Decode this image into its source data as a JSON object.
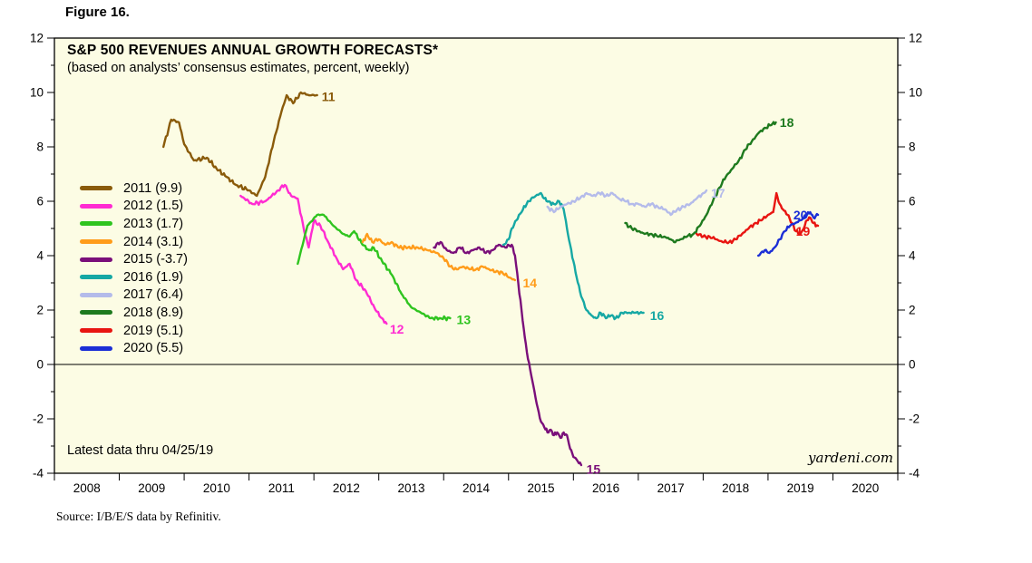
{
  "figure_label": "Figure 16.",
  "source_note": "Source: I/B/E/S data by Refinitiv.",
  "chart": {
    "title": "S&P 500 REVENUES ANNUAL GROWTH FORECASTS*",
    "subtitle": "(based on analysts’ consensus estimates, percent, weekly)",
    "latest_note": "Latest data thru 04/25/19",
    "watermark": "yardeni.com",
    "plot_background": "#fcfce4"
  },
  "chart_data": {
    "type": "line",
    "title": "S&P 500 REVENUES ANNUAL GROWTH FORECASTS*",
    "subtitle": "(based on analysts’ consensus estimates, percent, weekly)",
    "x_range": [
      2007.5,
      2020.5
    ],
    "y_range": [
      -4,
      12
    ],
    "x_ticks": [
      2008,
      2009,
      2010,
      2011,
      2012,
      2013,
      2014,
      2015,
      2016,
      2017,
      2018,
      2019,
      2020
    ],
    "y_ticks": [
      -4,
      -2,
      0,
      2,
      4,
      6,
      8,
      10,
      12
    ],
    "grid": false,
    "legend_position": "inside-left",
    "ylabel": "percent",
    "series": [
      {
        "name": "2011",
        "legend_label": "2011 (9.9)",
        "final_value": 9.9,
        "color": "#8a5b0a",
        "end_label": "11",
        "end_label_pos": [
          2011.62,
          9.85
        ],
        "points": [
          [
            2009.18,
            8.0
          ],
          [
            2009.3,
            9.0
          ],
          [
            2009.42,
            8.9
          ],
          [
            2009.5,
            8.1
          ],
          [
            2009.65,
            7.5
          ],
          [
            2009.85,
            7.6
          ],
          [
            2010.0,
            7.2
          ],
          [
            2010.15,
            6.9
          ],
          [
            2010.3,
            6.6
          ],
          [
            2010.5,
            6.4
          ],
          [
            2010.62,
            6.2
          ],
          [
            2010.75,
            6.9
          ],
          [
            2010.88,
            8.2
          ],
          [
            2011.0,
            9.3
          ],
          [
            2011.08,
            9.9
          ],
          [
            2011.18,
            9.6
          ],
          [
            2011.3,
            10.0
          ],
          [
            2011.42,
            9.9
          ],
          [
            2011.55,
            9.9
          ]
        ]
      },
      {
        "name": "2012",
        "legend_label": "2012 (1.5)",
        "final_value": 1.5,
        "color": "#ff2bd2",
        "end_label": "12",
        "end_label_pos": [
          2012.67,
          1.3
        ],
        "points": [
          [
            2010.37,
            6.2
          ],
          [
            2010.55,
            5.9
          ],
          [
            2010.75,
            6.0
          ],
          [
            2010.95,
            6.4
          ],
          [
            2011.05,
            6.6
          ],
          [
            2011.15,
            6.2
          ],
          [
            2011.25,
            6.1
          ],
          [
            2011.35,
            4.9
          ],
          [
            2011.42,
            4.3
          ],
          [
            2011.5,
            5.3
          ],
          [
            2011.6,
            5.1
          ],
          [
            2011.72,
            4.5
          ],
          [
            2011.85,
            3.9
          ],
          [
            2011.95,
            3.5
          ],
          [
            2012.05,
            3.7
          ],
          [
            2012.15,
            3.1
          ],
          [
            2012.3,
            2.7
          ],
          [
            2012.45,
            2.0
          ],
          [
            2012.55,
            1.7
          ],
          [
            2012.62,
            1.5
          ]
        ]
      },
      {
        "name": "2013",
        "legend_label": "2013 (1.7)",
        "final_value": 1.7,
        "color": "#2fc41f",
        "end_label": "13",
        "end_label_pos": [
          2013.7,
          1.65
        ],
        "points": [
          [
            2011.25,
            3.7
          ],
          [
            2011.4,
            5.1
          ],
          [
            2011.55,
            5.5
          ],
          [
            2011.65,
            5.5
          ],
          [
            2011.8,
            5.1
          ],
          [
            2011.95,
            4.8
          ],
          [
            2012.05,
            4.7
          ],
          [
            2012.12,
            4.9
          ],
          [
            2012.25,
            4.4
          ],
          [
            2012.35,
            4.2
          ],
          [
            2012.42,
            4.3
          ],
          [
            2012.55,
            3.8
          ],
          [
            2012.7,
            3.3
          ],
          [
            2012.85,
            2.6
          ],
          [
            2013.0,
            2.1
          ],
          [
            2013.15,
            1.9
          ],
          [
            2013.3,
            1.7
          ],
          [
            2013.45,
            1.7
          ],
          [
            2013.6,
            1.7
          ]
        ]
      },
      {
        "name": "2014",
        "legend_label": "2014 (3.1)",
        "final_value": 3.1,
        "color": "#ff9c1a",
        "end_label": "14",
        "end_label_pos": [
          2014.72,
          3.0
        ],
        "points": [
          [
            2012.25,
            4.5
          ],
          [
            2012.32,
            4.8
          ],
          [
            2012.4,
            4.5
          ],
          [
            2012.5,
            4.6
          ],
          [
            2012.6,
            4.4
          ],
          [
            2012.7,
            4.5
          ],
          [
            2012.8,
            4.3
          ],
          [
            2012.95,
            4.3
          ],
          [
            2013.1,
            4.3
          ],
          [
            2013.25,
            4.2
          ],
          [
            2013.4,
            4.1
          ],
          [
            2013.5,
            3.9
          ],
          [
            2013.6,
            3.6
          ],
          [
            2013.7,
            3.5
          ],
          [
            2013.8,
            3.6
          ],
          [
            2013.9,
            3.5
          ],
          [
            2014.0,
            3.5
          ],
          [
            2014.1,
            3.6
          ],
          [
            2014.2,
            3.5
          ],
          [
            2014.3,
            3.4
          ],
          [
            2014.4,
            3.4
          ],
          [
            2014.5,
            3.2
          ],
          [
            2014.6,
            3.1
          ]
        ]
      },
      {
        "name": "2015",
        "legend_label": "2015 (-3.7)",
        "final_value": -3.7,
        "color": "#7a0f7a",
        "end_label": "15",
        "end_label_pos": [
          2015.7,
          -3.85
        ],
        "points": [
          [
            2013.35,
            4.3
          ],
          [
            2013.45,
            4.5
          ],
          [
            2013.55,
            4.2
          ],
          [
            2013.65,
            4.1
          ],
          [
            2013.75,
            4.3
          ],
          [
            2013.85,
            4.1
          ],
          [
            2013.95,
            4.2
          ],
          [
            2014.05,
            4.3
          ],
          [
            2014.15,
            4.1
          ],
          [
            2014.25,
            4.2
          ],
          [
            2014.35,
            4.4
          ],
          [
            2014.45,
            4.3
          ],
          [
            2014.55,
            4.4
          ],
          [
            2014.6,
            4.0
          ],
          [
            2014.65,
            3.0
          ],
          [
            2014.7,
            2.0
          ],
          [
            2014.75,
            1.0
          ],
          [
            2014.8,
            0.2
          ],
          [
            2014.85,
            -0.4
          ],
          [
            2014.9,
            -1.0
          ],
          [
            2014.95,
            -1.6
          ],
          [
            2015.0,
            -2.1
          ],
          [
            2015.05,
            -2.3
          ],
          [
            2015.1,
            -2.5
          ],
          [
            2015.15,
            -2.4
          ],
          [
            2015.2,
            -2.6
          ],
          [
            2015.25,
            -2.5
          ],
          [
            2015.3,
            -2.7
          ],
          [
            2015.35,
            -2.5
          ],
          [
            2015.4,
            -2.6
          ],
          [
            2015.45,
            -3.1
          ],
          [
            2015.5,
            -3.4
          ],
          [
            2015.55,
            -3.5
          ],
          [
            2015.62,
            -3.7
          ]
        ]
      },
      {
        "name": "2016",
        "legend_label": "2016 (1.9)",
        "final_value": 1.9,
        "color": "#16a8a4",
        "end_label": "16",
        "end_label_pos": [
          2016.68,
          1.8
        ],
        "points": [
          [
            2014.42,
            4.4
          ],
          [
            2014.5,
            4.6
          ],
          [
            2014.55,
            5.0
          ],
          [
            2014.62,
            5.3
          ],
          [
            2014.7,
            5.6
          ],
          [
            2014.78,
            5.9
          ],
          [
            2014.85,
            6.1
          ],
          [
            2014.92,
            6.2
          ],
          [
            2015.0,
            6.3
          ],
          [
            2015.05,
            6.1
          ],
          [
            2015.12,
            6.0
          ],
          [
            2015.2,
            5.9
          ],
          [
            2015.28,
            6.0
          ],
          [
            2015.35,
            5.7
          ],
          [
            2015.4,
            5.0
          ],
          [
            2015.45,
            4.4
          ],
          [
            2015.5,
            3.8
          ],
          [
            2015.55,
            3.2
          ],
          [
            2015.62,
            2.5
          ],
          [
            2015.7,
            2.0
          ],
          [
            2015.78,
            1.8
          ],
          [
            2015.85,
            1.7
          ],
          [
            2015.92,
            1.9
          ],
          [
            2016.0,
            1.7
          ],
          [
            2016.08,
            1.8
          ],
          [
            2016.15,
            1.7
          ],
          [
            2016.25,
            1.9
          ],
          [
            2016.35,
            1.9
          ],
          [
            2016.45,
            1.9
          ],
          [
            2016.58,
            1.9
          ]
        ]
      },
      {
        "name": "2017",
        "legend_label": "2017 (6.4)",
        "final_value": 6.4,
        "color": "#b4bbea",
        "end_label": "17",
        "end_label_pos": [
          2017.62,
          6.3
        ],
        "points": [
          [
            2015.1,
            5.8
          ],
          [
            2015.2,
            5.6
          ],
          [
            2015.3,
            5.8
          ],
          [
            2015.4,
            5.9
          ],
          [
            2015.5,
            6.0
          ],
          [
            2015.6,
            6.1
          ],
          [
            2015.7,
            6.3
          ],
          [
            2015.8,
            6.2
          ],
          [
            2015.9,
            6.3
          ],
          [
            2016.0,
            6.2
          ],
          [
            2016.1,
            6.3
          ],
          [
            2016.2,
            6.1
          ],
          [
            2016.3,
            6.0
          ],
          [
            2016.4,
            5.9
          ],
          [
            2016.5,
            5.9
          ],
          [
            2016.6,
            5.8
          ],
          [
            2016.7,
            5.9
          ],
          [
            2016.8,
            5.8
          ],
          [
            2016.9,
            5.7
          ],
          [
            2016.95,
            5.6
          ],
          [
            2017.0,
            5.5
          ],
          [
            2017.1,
            5.7
          ],
          [
            2017.2,
            5.8
          ],
          [
            2017.3,
            5.9
          ],
          [
            2017.4,
            6.1
          ],
          [
            2017.5,
            6.3
          ],
          [
            2017.55,
            6.4
          ]
        ]
      },
      {
        "name": "2018",
        "legend_label": "2018 (8.9)",
        "final_value": 8.9,
        "color": "#1e7a1e",
        "end_label": "18",
        "end_label_pos": [
          2018.68,
          8.9
        ],
        "points": [
          [
            2016.3,
            5.2
          ],
          [
            2016.4,
            5.0
          ],
          [
            2016.5,
            4.9
          ],
          [
            2016.6,
            4.8
          ],
          [
            2016.7,
            4.8
          ],
          [
            2016.8,
            4.7
          ],
          [
            2016.9,
            4.7
          ],
          [
            2017.0,
            4.6
          ],
          [
            2017.05,
            4.5
          ],
          [
            2017.15,
            4.6
          ],
          [
            2017.25,
            4.7
          ],
          [
            2017.35,
            4.8
          ],
          [
            2017.45,
            5.1
          ],
          [
            2017.55,
            5.5
          ],
          [
            2017.65,
            6.0
          ],
          [
            2017.75,
            6.5
          ],
          [
            2017.85,
            6.9
          ],
          [
            2017.95,
            7.2
          ],
          [
            2018.05,
            7.5
          ],
          [
            2018.15,
            7.9
          ],
          [
            2018.25,
            8.2
          ],
          [
            2018.35,
            8.5
          ],
          [
            2018.45,
            8.7
          ],
          [
            2018.55,
            8.8
          ],
          [
            2018.62,
            8.9
          ]
        ]
      },
      {
        "name": "2019",
        "legend_label": "2019 (5.1)",
        "final_value": 5.1,
        "color": "#e81511",
        "end_label": "19",
        "end_label_pos": [
          2018.93,
          4.9
        ],
        "points": [
          [
            2017.4,
            4.8
          ],
          [
            2017.5,
            4.7
          ],
          [
            2017.6,
            4.7
          ],
          [
            2017.7,
            4.6
          ],
          [
            2017.8,
            4.5
          ],
          [
            2017.9,
            4.5
          ],
          [
            2018.0,
            4.6
          ],
          [
            2018.1,
            4.8
          ],
          [
            2018.2,
            5.0
          ],
          [
            2018.3,
            5.2
          ],
          [
            2018.4,
            5.3
          ],
          [
            2018.5,
            5.5
          ],
          [
            2018.58,
            5.6
          ],
          [
            2018.63,
            6.3
          ],
          [
            2018.68,
            5.9
          ],
          [
            2018.73,
            5.7
          ],
          [
            2018.8,
            5.5
          ],
          [
            2018.87,
            5.2
          ],
          [
            2018.93,
            4.9
          ],
          [
            2019.0,
            4.8
          ],
          [
            2019.05,
            5.0
          ],
          [
            2019.1,
            5.3
          ],
          [
            2019.15,
            5.4
          ],
          [
            2019.2,
            5.2
          ],
          [
            2019.27,
            5.1
          ]
        ]
      },
      {
        "name": "2020",
        "legend_label": "2020 (5.5)",
        "final_value": 5.5,
        "color": "#1b2ed6",
        "end_label": "20",
        "end_label_pos": [
          2018.89,
          5.5
        ],
        "points": [
          [
            2018.35,
            4.0
          ],
          [
            2018.45,
            4.2
          ],
          [
            2018.52,
            4.1
          ],
          [
            2018.6,
            4.3
          ],
          [
            2018.68,
            4.6
          ],
          [
            2018.76,
            4.9
          ],
          [
            2018.84,
            5.1
          ],
          [
            2018.92,
            5.2
          ],
          [
            2019.0,
            5.3
          ],
          [
            2019.05,
            5.4
          ],
          [
            2019.1,
            5.5
          ],
          [
            2019.15,
            5.6
          ],
          [
            2019.2,
            5.4
          ],
          [
            2019.27,
            5.5
          ]
        ]
      }
    ]
  }
}
